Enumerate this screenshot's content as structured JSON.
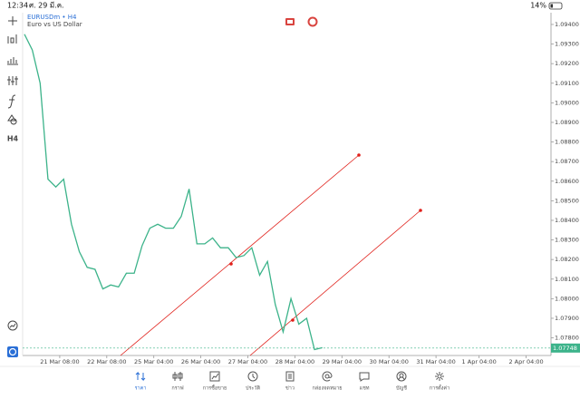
{
  "status_bar": {
    "time": "12:34",
    "date": "ศ. 29 มี.ค.",
    "battery": "14%"
  },
  "symbol": {
    "name": "EURUSDm • H4",
    "description": "Euro vs US Dollar"
  },
  "toolbar": {
    "timeframe": "H4"
  },
  "chart_data": {
    "type": "line",
    "color": "#3cb38a",
    "x": [
      0,
      1,
      2,
      3,
      4,
      5,
      6,
      7,
      8,
      9,
      10,
      11,
      12,
      13,
      14,
      15,
      16,
      17,
      18,
      19,
      20,
      21,
      22,
      23,
      24,
      25,
      26,
      27,
      28,
      29,
      30,
      31,
      32,
      33,
      34,
      35,
      36,
      37,
      38
    ],
    "values": [
      1.0935,
      1.0927,
      1.091,
      1.0861,
      1.0857,
      1.0861,
      1.0838,
      1.0824,
      1.0816,
      1.0815,
      1.0805,
      1.0807,
      1.0806,
      1.0813,
      1.0813,
      1.0827,
      1.0836,
      1.0838,
      1.0836,
      1.0836,
      1.0842,
      1.0856,
      1.0828,
      1.0828,
      1.0831,
      1.0826,
      1.0826,
      1.0821,
      1.0822,
      1.0826,
      1.0812,
      1.0819,
      1.0797,
      1.0783,
      1.08,
      1.0787,
      1.079,
      1.0774,
      1.0775
    ],
    "xlim": [
      -0.23,
      67.17
    ],
    "xticks": [
      {
        "value": 4.5,
        "label": "21 Mar 08:00"
      },
      {
        "value": 10.5,
        "label": "22 Mar 08:00"
      },
      {
        "value": 16.5,
        "label": "25 Mar 04:00"
      },
      {
        "value": 22.5,
        "label": "26 Mar 04:00"
      },
      {
        "value": 28.5,
        "label": "27 Mar 04:00"
      },
      {
        "value": 34.5,
        "label": "28 Mar 04:00"
      },
      {
        "value": 40.5,
        "label": "29 Mar 04:00"
      },
      {
        "value": 46.5,
        "label": "30 Mar 04:00"
      },
      {
        "value": 52.5,
        "label": "31 Mar 04:00"
      },
      {
        "value": 58,
        "label": "1 Apr 04:00"
      },
      {
        "value": 64,
        "label": "2 Apr 04:00"
      }
    ],
    "ylim": [
      1.0771,
      1.0946
    ],
    "yticks": [
      {
        "value": 1.094,
        "label": "1.09400"
      },
      {
        "value": 1.093,
        "label": "1.09300"
      },
      {
        "value": 1.092,
        "label": "1.09200"
      },
      {
        "value": 1.091,
        "label": "1.09100"
      },
      {
        "value": 1.09,
        "label": "1.09000"
      },
      {
        "value": 1.089,
        "label": "1.08900"
      },
      {
        "value": 1.088,
        "label": "1.08800"
      },
      {
        "value": 1.087,
        "label": "1.08700"
      },
      {
        "value": 1.086,
        "label": "1.08600"
      },
      {
        "value": 1.085,
        "label": "1.08500"
      },
      {
        "value": 1.084,
        "label": "1.08400"
      },
      {
        "value": 1.083,
        "label": "1.08300"
      },
      {
        "value": 1.082,
        "label": "1.08200"
      },
      {
        "value": 1.081,
        "label": "1.08100"
      },
      {
        "value": 1.08,
        "label": "1.08000"
      },
      {
        "value": 1.079,
        "label": "1.07900"
      },
      {
        "value": 1.078,
        "label": "1.07800"
      }
    ],
    "current_price": 1.07748
  },
  "nav": [
    "ราคา",
    "กราฟ",
    "การซื้อขาย",
    "ประวัติ",
    "ข่าว",
    "กล่องจดหมาย",
    "แชท",
    "บัญชี",
    "การตั้งค่า"
  ]
}
